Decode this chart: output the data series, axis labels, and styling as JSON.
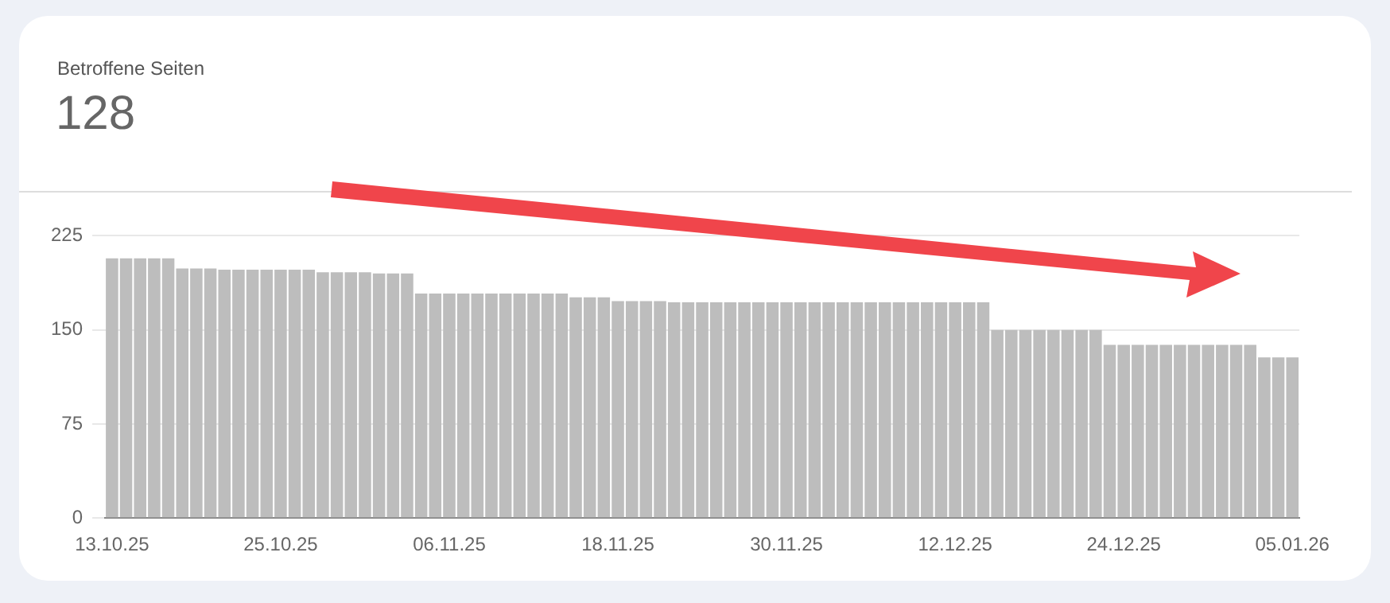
{
  "chart_data": {
    "type": "bar",
    "title": "Betroffene Seiten",
    "subtitle": "128",
    "categories": [
      "13.10.25",
      null,
      null,
      null,
      null,
      null,
      null,
      null,
      null,
      null,
      null,
      null,
      "25.10.25",
      null,
      null,
      null,
      null,
      null,
      null,
      null,
      null,
      null,
      null,
      null,
      "06.11.25",
      null,
      null,
      null,
      null,
      null,
      null,
      null,
      null,
      null,
      null,
      null,
      "18.11.25",
      null,
      null,
      null,
      null,
      null,
      null,
      null,
      null,
      null,
      null,
      null,
      "30.11.25",
      null,
      null,
      null,
      null,
      null,
      null,
      null,
      null,
      null,
      null,
      null,
      "12.12.25",
      null,
      null,
      null,
      null,
      null,
      null,
      null,
      null,
      null,
      null,
      null,
      "24.12.25",
      null,
      null,
      null,
      null,
      null,
      null,
      null,
      null,
      null,
      null,
      null,
      "05.01.26"
    ],
    "values": [
      207,
      207,
      207,
      207,
      207,
      199,
      199,
      199,
      198,
      198,
      198,
      198,
      198,
      198,
      198,
      196,
      196,
      196,
      196,
      195,
      195,
      195,
      179,
      179,
      179,
      179,
      179,
      179,
      179,
      179,
      179,
      179,
      179,
      176,
      176,
      176,
      173,
      173,
      173,
      173,
      172,
      172,
      172,
      172,
      172,
      172,
      172,
      172,
      172,
      172,
      172,
      172,
      172,
      172,
      172,
      172,
      172,
      172,
      172,
      172,
      172,
      172,
      172,
      150,
      150,
      150,
      150,
      150,
      150,
      150,
      150,
      138,
      138,
      138,
      138,
      138,
      138,
      138,
      138,
      138,
      138,
      138,
      128,
      128,
      128
    ],
    "color": "#bdbdbd",
    "ylim": [
      0,
      225
    ],
    "yticks": [
      0,
      75,
      150,
      225
    ],
    "grid": "y",
    "legend": false
  }
}
